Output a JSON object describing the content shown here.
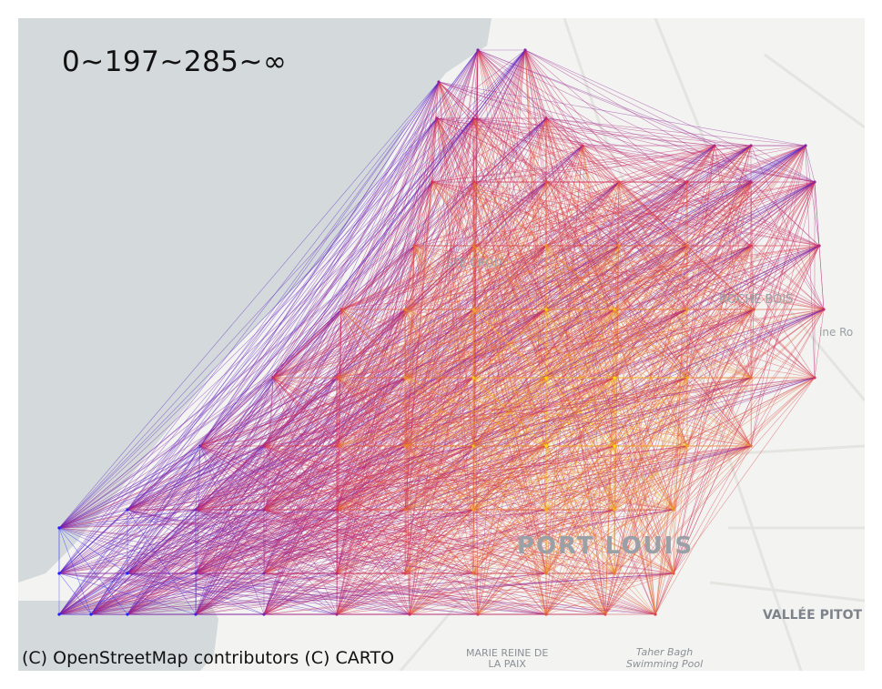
{
  "map": {
    "title": "0~197~285~∞",
    "attribution": "(C) OpenStreetMap contributors (C) CARTO",
    "place_labels": {
      "port_louis": "PORT LOUIS",
      "vallee_pitot": "VALLÉE PITOT",
      "marie_reine_line1": "MARIE REINE DE",
      "marie_reine_line2": "LA PAIX",
      "taher_line1": "Taher Bagh",
      "taher_line2": "Swimming Pool",
      "roche_bois": "ROCHE BOIS",
      "plaine_road": "ine Ro",
      "ste_croix": "STE CROIX"
    },
    "colors": {
      "sea": "#d4d9db",
      "land": "#f3f3f1",
      "low": "#1f1fff",
      "mid": "#d42a5a",
      "high": "#ffe000"
    },
    "edge_bins": [
      "0",
      "197",
      "285",
      "∞"
    ]
  }
}
